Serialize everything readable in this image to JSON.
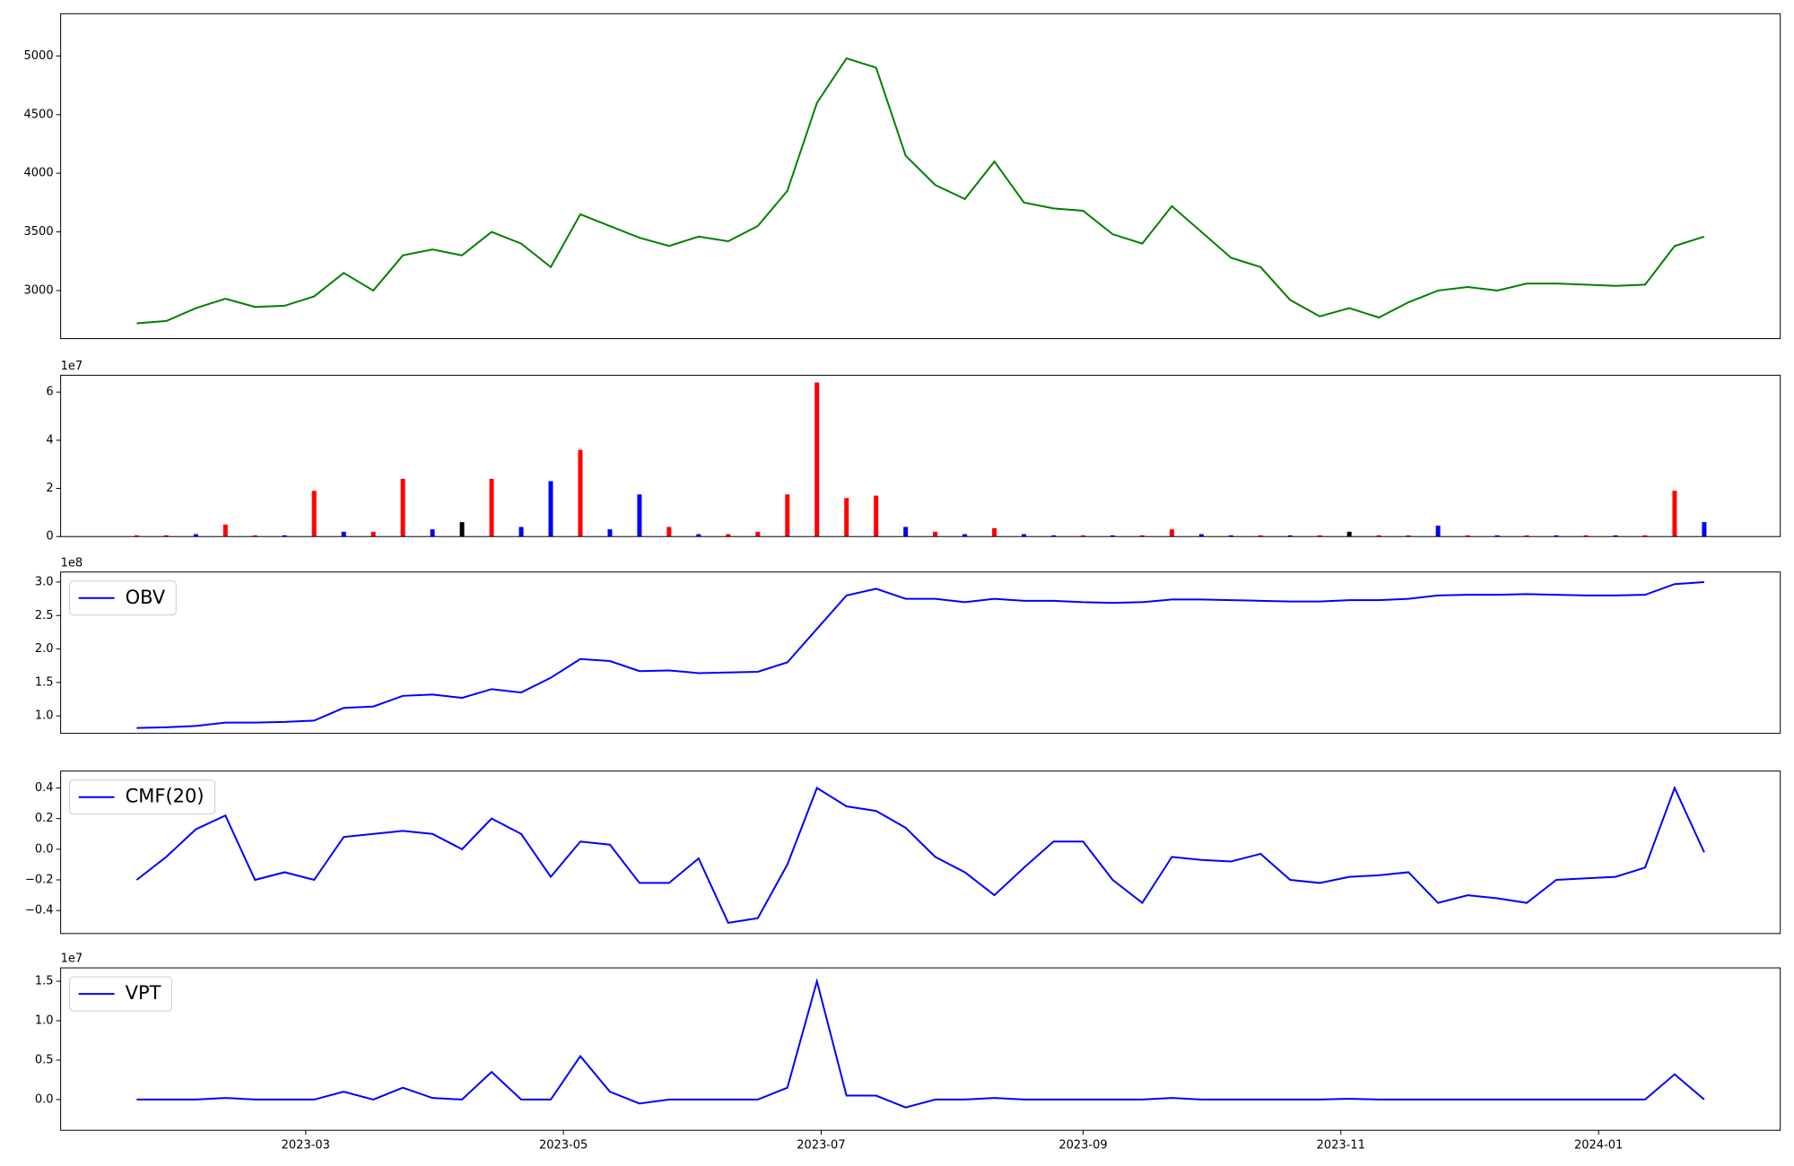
{
  "chart_data": [
    {
      "type": "line",
      "color": "#008000",
      "x": [
        "2023-01-20",
        "2023-01-27",
        "2023-02-03",
        "2023-02-10",
        "2023-02-17",
        "2023-02-24",
        "2023-03-03",
        "2023-03-10",
        "2023-03-17",
        "2023-03-24",
        "2023-03-31",
        "2023-04-07",
        "2023-04-14",
        "2023-04-21",
        "2023-04-28",
        "2023-05-05",
        "2023-05-12",
        "2023-05-19",
        "2023-05-26",
        "2023-06-02",
        "2023-06-09",
        "2023-06-16",
        "2023-06-23",
        "2023-06-30",
        "2023-07-07",
        "2023-07-14",
        "2023-07-21",
        "2023-07-28",
        "2023-08-04",
        "2023-08-11",
        "2023-08-18",
        "2023-08-25",
        "2023-09-01",
        "2023-09-08",
        "2023-09-15",
        "2023-09-22",
        "2023-09-29",
        "2023-10-06",
        "2023-10-13",
        "2023-10-20",
        "2023-10-27",
        "2023-11-03",
        "2023-11-10",
        "2023-11-17",
        "2023-11-24",
        "2023-12-01",
        "2023-12-08",
        "2023-12-15",
        "2023-12-22",
        "2023-12-29",
        "2024-01-05",
        "2024-01-12",
        "2024-01-19",
        "2024-01-26"
      ],
      "values": [
        2720,
        2740,
        2850,
        2930,
        2860,
        2870,
        2950,
        3150,
        3000,
        3300,
        3350,
        3300,
        3500,
        3400,
        3200,
        3650,
        3550,
        3450,
        3380,
        3460,
        3420,
        3550,
        3850,
        4600,
        4980,
        4900,
        4150,
        3900,
        3780,
        4100,
        3750,
        3700,
        3680,
        3480,
        3400,
        3720,
        3500,
        3280,
        3200,
        2920,
        2780,
        2850,
        2770,
        2900,
        3000,
        3030,
        3000,
        3060,
        3060,
        3050,
        3040,
        3050,
        3380,
        3460
      ],
      "xlim": [
        "2023-01-02",
        "2024-02-13"
      ],
      "ylim": [
        2590,
        5360
      ],
      "yticks": [
        3000,
        3500,
        4000,
        4500,
        5000
      ]
    },
    {
      "type": "bar",
      "offset_label": "1e7",
      "x": [
        "2023-01-20",
        "2023-01-27",
        "2023-02-03",
        "2023-02-10",
        "2023-02-17",
        "2023-02-24",
        "2023-03-03",
        "2023-03-10",
        "2023-03-17",
        "2023-03-24",
        "2023-03-31",
        "2023-04-07",
        "2023-04-14",
        "2023-04-21",
        "2023-04-28",
        "2023-05-05",
        "2023-05-12",
        "2023-05-19",
        "2023-05-26",
        "2023-06-02",
        "2023-06-09",
        "2023-06-16",
        "2023-06-23",
        "2023-06-30",
        "2023-07-07",
        "2023-07-14",
        "2023-07-21",
        "2023-07-28",
        "2023-08-04",
        "2023-08-11",
        "2023-08-18",
        "2023-08-25",
        "2023-09-01",
        "2023-09-08",
        "2023-09-15",
        "2023-09-22",
        "2023-09-29",
        "2023-10-06",
        "2023-10-13",
        "2023-10-20",
        "2023-10-27",
        "2023-11-03",
        "2023-11-10",
        "2023-11-17",
        "2023-11-24",
        "2023-12-01",
        "2023-12-08",
        "2023-12-15",
        "2023-12-22",
        "2023-12-29",
        "2024-01-05",
        "2024-01-12",
        "2024-01-19",
        "2024-01-26"
      ],
      "values": [
        0.05,
        0.05,
        0.1,
        0.5,
        0.05,
        0.05,
        1.9,
        0.2,
        0.2,
        2.4,
        0.3,
        0.6,
        2.4,
        0.4,
        2.3,
        3.6,
        0.3,
        1.75,
        0.4,
        0.1,
        0.1,
        0.2,
        1.75,
        6.4,
        1.6,
        1.7,
        0.4,
        0.2,
        0.1,
        0.35,
        0.1,
        0.05,
        0.05,
        0.05,
        0.05,
        0.3,
        0.1,
        0.05,
        0.05,
        0.05,
        0.05,
        0.2,
        0.05,
        0.05,
        0.45,
        0.05,
        0.05,
        0.05,
        0.05,
        0.05,
        0.05,
        0.05,
        1.9,
        0.6
      ],
      "colors": [
        "red",
        "red",
        "blue",
        "red",
        "red",
        "blue",
        "red",
        "blue",
        "red",
        "red",
        "blue",
        "black",
        "red",
        "blue",
        "blue",
        "red",
        "blue",
        "blue",
        "red",
        "blue",
        "red",
        "red",
        "red",
        "red",
        "red",
        "red",
        "blue",
        "red",
        "blue",
        "red",
        "blue",
        "blue",
        "red",
        "blue",
        "red",
        "red",
        "blue",
        "blue",
        "red",
        "blue",
        "red",
        "black",
        "red",
        "red",
        "blue",
        "red",
        "blue",
        "red",
        "blue",
        "red",
        "blue",
        "red",
        "red",
        "blue"
      ],
      "xlim": [
        "2023-01-02",
        "2024-02-13"
      ],
      "ylim": [
        0,
        6.7
      ],
      "yticks": [
        0,
        2,
        4,
        6
      ]
    },
    {
      "type": "line",
      "offset_label": "1e8",
      "legend": "upper left",
      "x": [
        "2023-01-20",
        "2023-01-27",
        "2023-02-03",
        "2023-02-10",
        "2023-02-17",
        "2023-02-24",
        "2023-03-03",
        "2023-03-10",
        "2023-03-17",
        "2023-03-24",
        "2023-03-31",
        "2023-04-07",
        "2023-04-14",
        "2023-04-21",
        "2023-04-28",
        "2023-05-05",
        "2023-05-12",
        "2023-05-19",
        "2023-05-26",
        "2023-06-02",
        "2023-06-09",
        "2023-06-16",
        "2023-06-23",
        "2023-06-30",
        "2023-07-07",
        "2023-07-14",
        "2023-07-21",
        "2023-07-28",
        "2023-08-04",
        "2023-08-11",
        "2023-08-18",
        "2023-08-25",
        "2023-09-01",
        "2023-09-08",
        "2023-09-15",
        "2023-09-22",
        "2023-09-29",
        "2023-10-06",
        "2023-10-13",
        "2023-10-20",
        "2023-10-27",
        "2023-11-03",
        "2023-11-10",
        "2023-11-17",
        "2023-11-24",
        "2023-12-01",
        "2023-12-08",
        "2023-12-15",
        "2023-12-22",
        "2023-12-29",
        "2024-01-05",
        "2024-01-12",
        "2024-01-19",
        "2024-01-26"
      ],
      "series": [
        {
          "name": "OBV",
          "color": "#0000ff",
          "values": [
            0.82,
            0.83,
            0.85,
            0.9,
            0.9,
            0.91,
            0.93,
            1.12,
            1.14,
            1.3,
            1.32,
            1.27,
            1.4,
            1.35,
            1.57,
            1.85,
            1.82,
            1.67,
            1.68,
            1.64,
            1.65,
            1.66,
            1.8,
            2.3,
            2.8,
            2.9,
            2.75,
            2.75,
            2.7,
            2.75,
            2.72,
            2.72,
            2.7,
            2.69,
            2.7,
            2.74,
            2.74,
            2.73,
            2.72,
            2.71,
            2.71,
            2.73,
            2.73,
            2.75,
            2.8,
            2.81,
            2.81,
            2.82,
            2.81,
            2.8,
            2.8,
            2.81,
            2.97,
            3.0
          ]
        }
      ],
      "xlim": [
        "2023-01-02",
        "2024-02-13"
      ],
      "ylim": [
        0.74,
        3.15
      ],
      "yticks": [
        {
          "value": 1,
          "label": "1.0"
        },
        1.5,
        {
          "value": 2,
          "label": "2.0"
        },
        2.5,
        {
          "value": 3,
          "label": "3.0"
        }
      ]
    },
    {
      "type": "line",
      "legend": "upper left",
      "x": [
        "2023-01-20",
        "2023-01-27",
        "2023-02-03",
        "2023-02-10",
        "2023-02-17",
        "2023-02-24",
        "2023-03-03",
        "2023-03-10",
        "2023-03-17",
        "2023-03-24",
        "2023-03-31",
        "2023-04-07",
        "2023-04-14",
        "2023-04-21",
        "2023-04-28",
        "2023-05-05",
        "2023-05-12",
        "2023-05-19",
        "2023-05-26",
        "2023-06-02",
        "2023-06-09",
        "2023-06-16",
        "2023-06-23",
        "2023-06-30",
        "2023-07-07",
        "2023-07-14",
        "2023-07-21",
        "2023-07-28",
        "2023-08-04",
        "2023-08-11",
        "2023-08-18",
        "2023-08-25",
        "2023-09-01",
        "2023-09-08",
        "2023-09-15",
        "2023-09-22",
        "2023-09-29",
        "2023-10-06",
        "2023-10-13",
        "2023-10-20",
        "2023-10-27",
        "2023-11-03",
        "2023-11-10",
        "2023-11-17",
        "2023-11-24",
        "2023-12-01",
        "2023-12-08",
        "2023-12-15",
        "2023-12-22",
        "2023-12-29",
        "2024-01-05",
        "2024-01-12",
        "2024-01-19",
        "2024-01-26"
      ],
      "series": [
        {
          "name": "CMF(20)",
          "color": "#0000ff",
          "values": [
            -0.2,
            -0.05,
            0.13,
            0.22,
            -0.2,
            -0.15,
            -0.2,
            0.08,
            0.1,
            0.12,
            0.1,
            0.0,
            0.2,
            0.1,
            -0.18,
            0.05,
            0.03,
            -0.22,
            -0.22,
            -0.06,
            -0.48,
            -0.45,
            -0.1,
            0.4,
            0.28,
            0.25,
            0.14,
            -0.05,
            -0.15,
            -0.3,
            -0.12,
            0.05,
            0.05,
            -0.2,
            -0.35,
            -0.05,
            -0.07,
            -0.08,
            -0.03,
            -0.2,
            -0.22,
            -0.18,
            -0.17,
            -0.15,
            -0.35,
            -0.3,
            -0.32,
            -0.35,
            -0.2,
            -0.19,
            -0.18,
            -0.12,
            0.4,
            -0.02
          ]
        }
      ],
      "xlim": [
        "2023-01-02",
        "2024-02-13"
      ],
      "ylim": [
        -0.55,
        0.51
      ],
      "yticks": [
        {
          "value": -0.4,
          "label": "−0.4"
        },
        {
          "value": -0.2,
          "label": "−0.2"
        },
        {
          "value": 0,
          "label": "0.0"
        },
        0.2,
        0.4
      ]
    },
    {
      "type": "line",
      "offset_label": "1e7",
      "legend": "upper left",
      "x": [
        "2023-01-20",
        "2023-01-27",
        "2023-02-03",
        "2023-02-10",
        "2023-02-17",
        "2023-02-24",
        "2023-03-03",
        "2023-03-10",
        "2023-03-17",
        "2023-03-24",
        "2023-03-31",
        "2023-04-07",
        "2023-04-14",
        "2023-04-21",
        "2023-04-28",
        "2023-05-05",
        "2023-05-12",
        "2023-05-19",
        "2023-05-26",
        "2023-06-02",
        "2023-06-09",
        "2023-06-16",
        "2023-06-23",
        "2023-06-30",
        "2023-07-07",
        "2023-07-14",
        "2023-07-21",
        "2023-07-28",
        "2023-08-04",
        "2023-08-11",
        "2023-08-18",
        "2023-08-25",
        "2023-09-01",
        "2023-09-08",
        "2023-09-15",
        "2023-09-22",
        "2023-09-29",
        "2023-10-06",
        "2023-10-13",
        "2023-10-20",
        "2023-10-27",
        "2023-11-03",
        "2023-11-10",
        "2023-11-17",
        "2023-11-24",
        "2023-12-01",
        "2023-12-08",
        "2023-12-15",
        "2023-12-22",
        "2023-12-29",
        "2024-01-05",
        "2024-01-12",
        "2024-01-19",
        "2024-01-26"
      ],
      "series": [
        {
          "name": "VPT",
          "color": "#0000ff",
          "values": [
            0,
            0,
            0,
            0.02,
            0,
            0,
            0,
            0.1,
            0,
            0.15,
            0.02,
            0,
            0.35,
            0,
            0,
            0.55,
            0.1,
            -0.05,
            0,
            0,
            0,
            0,
            0.15,
            1.5,
            0.05,
            0.05,
            -0.1,
            0,
            0,
            0.02,
            0,
            0,
            0,
            0,
            0,
            0.02,
            0,
            0,
            0,
            0,
            0,
            0.01,
            0,
            0,
            0,
            0,
            0,
            0,
            0,
            0,
            0,
            0,
            0.32,
            0
          ]
        }
      ],
      "xlim": [
        "2023-01-02",
        "2024-02-13"
      ],
      "ylim": [
        -0.39,
        1.67
      ],
      "yticks": [
        {
          "value": 0,
          "label": "0.0"
        },
        0.5,
        {
          "value": 1,
          "label": "1.0"
        },
        1.5
      ],
      "xticks": [
        {
          "value": "2023-03-01",
          "label": "2023-03"
        },
        {
          "value": "2023-05-01",
          "label": "2023-05"
        },
        {
          "value": "2023-07-01",
          "label": "2023-07"
        },
        {
          "value": "2023-09-01",
          "label": "2023-09"
        },
        {
          "value": "2023-11-01",
          "label": "2023-11"
        },
        {
          "value": "2024-01-01",
          "label": "2024-01"
        }
      ]
    }
  ]
}
